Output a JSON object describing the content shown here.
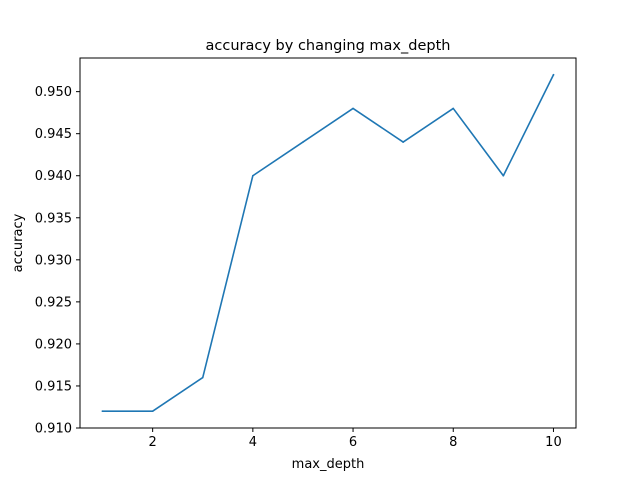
{
  "chart_data": {
    "type": "line",
    "title": "accuracy by changing max_depth",
    "xlabel": "max_depth",
    "ylabel": "accuracy",
    "x": [
      1,
      2,
      3,
      4,
      5,
      6,
      7,
      8,
      9,
      10
    ],
    "series": [
      {
        "values": [
          0.912,
          0.912,
          0.916,
          0.94,
          0.944,
          0.948,
          0.944,
          0.948,
          0.94,
          0.952
        ],
        "color": "#1f77b4"
      }
    ],
    "xlim": [
      0.55,
      10.45
    ],
    "ylim": [
      0.91,
      0.954
    ],
    "xticks": [
      2,
      4,
      6,
      8,
      10
    ],
    "xtick_labels": [
      "2",
      "4",
      "6",
      "8",
      "10"
    ],
    "yticks": [
      0.91,
      0.915,
      0.92,
      0.925,
      0.93,
      0.935,
      0.94,
      0.945,
      0.95
    ],
    "ytick_labels": [
      "0.910",
      "0.915",
      "0.920",
      "0.925",
      "0.930",
      "0.935",
      "0.940",
      "0.945",
      "0.950"
    ],
    "grid": false,
    "legend": "none"
  }
}
